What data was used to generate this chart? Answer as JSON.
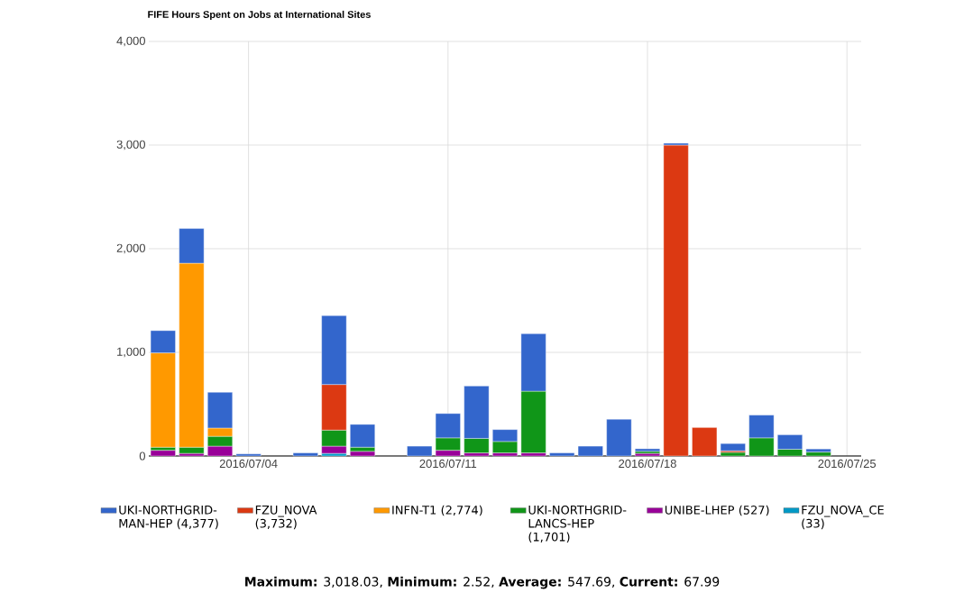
{
  "chart_data": {
    "type": "bar",
    "stacked": true,
    "title": "FIFE Hours Spent on Jobs at International Sites",
    "x": [
      "2016-07-01",
      "2016-07-02",
      "2016-07-03",
      "2016-07-04",
      "2016-07-05",
      "2016-07-06",
      "2016-07-07",
      "2016-07-08",
      "2016-07-09",
      "2016-07-10",
      "2016-07-11",
      "2016-07-12",
      "2016-07-13",
      "2016-07-14",
      "2016-07-15",
      "2016-07-16",
      "2016-07-17",
      "2016-07-18",
      "2016-07-19",
      "2016-07-20",
      "2016-07-21",
      "2016-07-22",
      "2016-07-23",
      "2016-07-24"
    ],
    "series": [
      {
        "name": "FZU_NOVA_CE (33)",
        "color": "#0099c6",
        "values": [
          null,
          null,
          null,
          null,
          null,
          null,
          25,
          null,
          null,
          null,
          null,
          null,
          null,
          null,
          null,
          null,
          null,
          null,
          null,
          null,
          null,
          null,
          null,
          null
        ]
      },
      {
        "name": "UNIBE-LHEP (527)",
        "color": "#990099",
        "values": [
          55,
          25,
          95,
          null,
          null,
          null,
          70,
          45,
          null,
          null,
          55,
          30,
          30,
          30,
          null,
          null,
          null,
          25,
          null,
          null,
          null,
          null,
          null,
          null
        ]
      },
      {
        "name": "UKI-NORTHGRID-LANCS-HEP (1,701)",
        "color": "#109618",
        "values": [
          30,
          60,
          95,
          null,
          null,
          null,
          155,
          40,
          null,
          null,
          120,
          140,
          110,
          595,
          null,
          null,
          null,
          20,
          null,
          null,
          35,
          175,
          65,
          38
        ]
      },
      {
        "name": "INFN-T1 (2,774)",
        "color": "#ff9900",
        "values": [
          910,
          1775,
          80,
          null,
          null,
          null,
          null,
          null,
          null,
          null,
          null,
          null,
          null,
          null,
          null,
          null,
          null,
          null,
          null,
          null,
          null,
          null,
          null,
          null
        ]
      },
      {
        "name": "FZU_NOVA (3,732)",
        "color": "#dc3912",
        "values": [
          null,
          null,
          null,
          null,
          null,
          null,
          440,
          null,
          null,
          null,
          null,
          null,
          null,
          null,
          null,
          null,
          null,
          null,
          3000,
          275,
          15,
          null,
          null,
          null
        ]
      },
      {
        "name": "UKI-NORTHGRID-MAN-HEP (4,377)",
        "color": "#3366cc",
        "values": [
          215,
          335,
          345,
          20,
          null,
          30,
          665,
          220,
          null,
          95,
          235,
          505,
          115,
          555,
          30,
          95,
          355,
          25,
          18,
          null,
          70,
          220,
          140,
          30
        ]
      }
    ],
    "xlim": [
      "2016-06-30T12:00",
      "2016-07-25T12:00"
    ],
    "xticks": [
      {
        "value": "2016-07-04",
        "label": "2016/07/04"
      },
      {
        "value": "2016-07-11",
        "label": "2016/07/11"
      },
      {
        "value": "2016-07-18",
        "label": "2016/07/18"
      },
      {
        "value": "2016-07-25",
        "label": "2016/07/25"
      }
    ],
    "ylim": [
      0,
      4000
    ],
    "yticks": [
      0,
      {
        "value": 1000,
        "label": "1,000"
      },
      {
        "value": 2000,
        "label": "2,000"
      },
      {
        "value": 3000,
        "label": "3,000"
      },
      {
        "value": 4000,
        "label": "4,000"
      }
    ],
    "grid": true,
    "legend": "bottom",
    "annotations": [
      "**Maximum:** 3,018.03, **Minimum:** 2.52, **Average:** 547.69, **Current:** 67.99"
    ]
  }
}
